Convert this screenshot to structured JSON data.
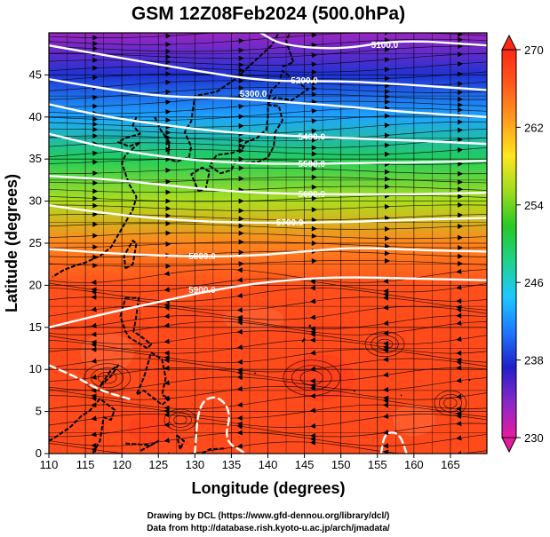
{
  "chart_data": {
    "type": "heatmap",
    "title": "GSM 12Z08Feb2024 (500.0hPa)",
    "xlabel": "Longitude (degrees)",
    "ylabel": "Latitude (degrees)",
    "xlim": [
      110,
      170
    ],
    "ylim": [
      0,
      50
    ],
    "x_ticks": [
      110,
      115,
      120,
      125,
      130,
      135,
      140,
      145,
      150,
      155,
      160,
      165
    ],
    "y_ticks": [
      0,
      5,
      10,
      15,
      20,
      25,
      30,
      35,
      40,
      45
    ],
    "grid": true,
    "colorbar": {
      "min": 230,
      "max": 270,
      "tick_values": [
        230,
        238,
        246,
        254,
        262,
        270
      ],
      "colormap": [
        "#e81aa0",
        "#8a28c8",
        "#2020c8",
        "#1e78ff",
        "#1ec8ff",
        "#1ed28c",
        "#28c828",
        "#a0dc1e",
        "#ffe61e",
        "#ff9c1e",
        "#ff5a1e",
        "#ff2814"
      ]
    },
    "temperature_profile": [
      {
        "lat": 0,
        "value": 267.5
      },
      {
        "lat": 5,
        "value": 267.5
      },
      {
        "lat": 10,
        "value": 267.5
      },
      {
        "lat": 15,
        "value": 267.5
      },
      {
        "lat": 20,
        "value": 267
      },
      {
        "lat": 25,
        "value": 264
      },
      {
        "lat": 30,
        "value": 256
      },
      {
        "lat": 35,
        "value": 250
      },
      {
        "lat": 40,
        "value": 243
      },
      {
        "lat": 45,
        "value": 238
      },
      {
        "lat": 50,
        "value": 233
      }
    ],
    "height_contours": [
      {
        "label": "5100.0",
        "label_pos": [
          156,
          48.5
        ],
        "points": [
          [
            139,
            50
          ],
          [
            142,
            48.5
          ],
          [
            150,
            48
          ],
          [
            158,
            49.2
          ],
          [
            170,
            48.5
          ]
        ]
      },
      {
        "label": "5200.0",
        "label_pos": [
          145,
          44.3
        ],
        "points": [
          [
            110,
            48.5
          ],
          [
            120,
            47
          ],
          [
            130,
            45.5
          ],
          [
            140,
            44.2
          ],
          [
            150,
            44.3
          ],
          [
            160,
            43.8
          ],
          [
            170,
            43.2
          ]
        ]
      },
      {
        "label": "5300.0",
        "label_pos": [
          138,
          42.7
        ],
        "points": [
          [
            110,
            44.5
          ],
          [
            118,
            43.3
          ],
          [
            126,
            42.4
          ],
          [
            134,
            42.3
          ],
          [
            142,
            41.8
          ],
          [
            150,
            41.3
          ],
          [
            160,
            40.5
          ],
          [
            170,
            40
          ]
        ]
      },
      {
        "label": "5400.0",
        "label_pos": [
          146,
          37.6
        ],
        "points": [
          [
            110,
            41.5
          ],
          [
            118,
            40
          ],
          [
            126,
            39
          ],
          [
            134,
            38.2
          ],
          [
            142,
            37.8
          ],
          [
            150,
            37.5
          ],
          [
            160,
            37.2
          ],
          [
            170,
            36.8
          ]
        ]
      },
      {
        "label": "5500.0",
        "label_pos": [
          146,
          34.4
        ],
        "points": [
          [
            110,
            38
          ],
          [
            118,
            36.3
          ],
          [
            126,
            35.2
          ],
          [
            134,
            34.6
          ],
          [
            142,
            34.4
          ],
          [
            150,
            34.5
          ],
          [
            160,
            34.6
          ],
          [
            170,
            34.8
          ]
        ]
      },
      {
        "label": "5600.0",
        "label_pos": [
          146,
          30.8
        ],
        "points": [
          [
            110,
            33
          ],
          [
            120,
            32.5
          ],
          [
            130,
            31.5
          ],
          [
            140,
            30.9
          ],
          [
            150,
            30.8
          ],
          [
            160,
            30.8
          ],
          [
            170,
            31
          ]
        ]
      },
      {
        "label": "5700.0",
        "label_pos": [
          143,
          27.4
        ],
        "points": [
          [
            110,
            29.5
          ],
          [
            120,
            28.3
          ],
          [
            130,
            27.6
          ],
          [
            140,
            27.4
          ],
          [
            150,
            27.5
          ],
          [
            160,
            27.8
          ],
          [
            170,
            28
          ]
        ]
      },
      {
        "label": "5800.0",
        "label_pos": [
          131,
          23.4
        ],
        "points": [
          [
            110,
            24.3
          ],
          [
            120,
            23.7
          ],
          [
            130,
            23.4
          ],
          [
            138,
            23.5
          ],
          [
            146,
            24.1
          ],
          [
            152,
            24.5
          ],
          [
            160,
            24.2
          ],
          [
            170,
            24
          ]
        ]
      },
      {
        "label": "5900.0",
        "label_pos": [
          131,
          19.4
        ],
        "points": [
          [
            110,
            15
          ],
          [
            118,
            16.7
          ],
          [
            126,
            18.2
          ],
          [
            134,
            19.7
          ],
          [
            142,
            20.6
          ],
          [
            150,
            21
          ],
          [
            160,
            20.8
          ],
          [
            170,
            20.6
          ]
        ]
      },
      {
        "label": "",
        "label_pos": null,
        "points": [
          [
            110,
            10.5
          ],
          [
            114,
            9
          ],
          [
            117,
            7.5
          ],
          [
            121,
            6.5
          ]
        ]
      },
      {
        "label": "",
        "label_pos": null,
        "points": [
          [
            130,
            0
          ],
          [
            130.5,
            6
          ],
          [
            133,
            7
          ],
          [
            135,
            5
          ],
          [
            134,
            1.5
          ],
          [
            137,
            0
          ]
        ]
      },
      {
        "label": "",
        "label_pos": null,
        "points": [
          [
            155.5,
            0
          ],
          [
            156,
            2.5
          ],
          [
            158,
            2.5
          ],
          [
            159,
            0
          ]
        ]
      }
    ],
    "wind_flow": [
      {
        "lat_band": [
          35,
          50
        ],
        "direction": "west-to-east",
        "strength": "strong"
      },
      {
        "lat_band": [
          22,
          35
        ],
        "direction": "west-to-east",
        "strength": "moderate"
      },
      {
        "lat_band": [
          15,
          22
        ],
        "direction": "east-to-west",
        "strength": "moderate"
      },
      {
        "lat_band": [
          0,
          15
        ],
        "direction": "easterly with eddies",
        "strength": "weak"
      }
    ],
    "credits": [
      "Drawing by DCL (https://www.gfd-dennou.org/library/dcl/)",
      "Data from http://database.rish.kyoto-u.ac.jp/arch/jmadata/"
    ]
  }
}
